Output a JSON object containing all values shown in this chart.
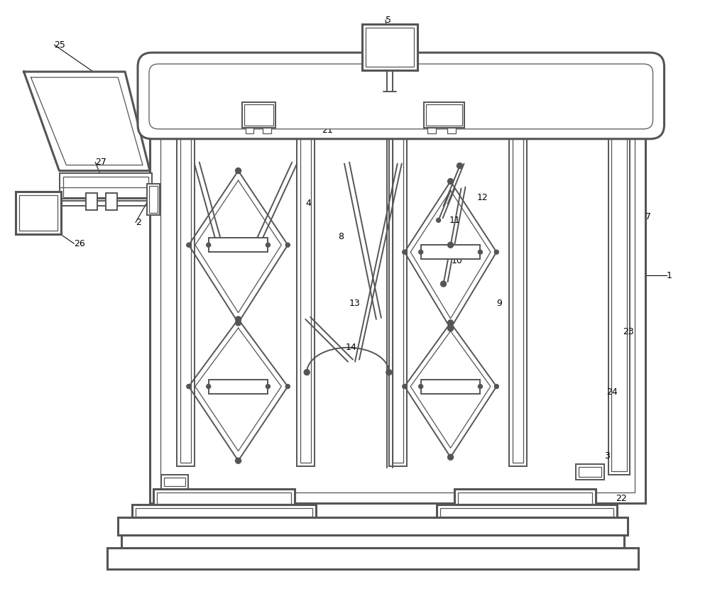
{
  "bg_color": "#ffffff",
  "line_color": "#555555",
  "label_color": "#000000",
  "figsize": [
    10.0,
    8.3
  ],
  "dpi": 100
}
